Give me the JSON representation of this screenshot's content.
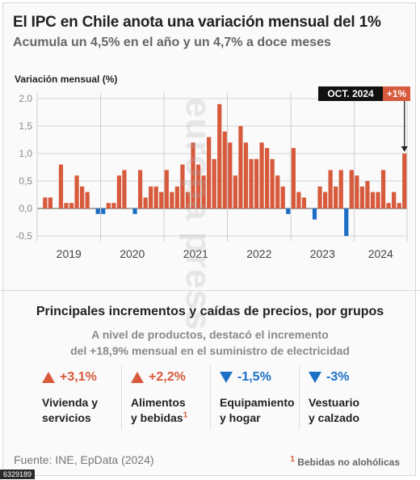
{
  "header": {
    "title": "El IPC en Chile anota una variación mensual del 1%",
    "subtitle": "Acumula un 4,5% en el año y un 4,7% a doce meses"
  },
  "watermark": "europa press",
  "chart_data": {
    "type": "bar",
    "title": "El IPC en Chile anota una variación mensual del 1%",
    "subtitle": "Acumula un 4,5% en el año y un 4,7% a doce meses",
    "ylabel": "Variación mensual (%)",
    "xlabel": "",
    "ylim": [
      -0.6,
      2.1
    ],
    "yticks": [
      "2,0",
      "1,5",
      "1,0",
      "0,5",
      "0,0",
      "-0,5"
    ],
    "ytick_values": [
      2.0,
      1.5,
      1.0,
      0.5,
      0.0,
      -0.5
    ],
    "grid": true,
    "year_labels": [
      "2019",
      "2020",
      "2021",
      "2022",
      "2023",
      "2024"
    ],
    "positive_color": "#d75a3c",
    "negative_color": "#1d6fc6",
    "annotation": {
      "label": "OCT. 2024",
      "value_label": "+1%"
    },
    "series": [
      {
        "values": [
          0.2,
          0.2,
          0.0,
          0.8,
          0.1,
          0.1,
          0.6,
          0.4,
          0.3,
          0.0,
          -0.1,
          -0.1,
          0.1,
          0.1,
          0.6,
          0.7,
          0.0,
          -0.1,
          0.7,
          0.2,
          0.4,
          0.4,
          0.3,
          0.7,
          0.3,
          0.4,
          0.8,
          0.3,
          1.2,
          0.8,
          0.6,
          1.3,
          0.9,
          1.9,
          1.4,
          1.2,
          0.6,
          1.5,
          1.2,
          0.9,
          0.9,
          1.2,
          1.1,
          0.9,
          0.6,
          0.4,
          -0.1,
          1.1,
          0.3,
          0.2,
          0.0,
          -0.2,
          0.4,
          0.3,
          0.7,
          0.4,
          0.7,
          -0.5,
          0.7,
          0.6,
          0.4,
          0.5,
          0.3,
          0.3,
          0.7,
          0.1,
          0.3,
          0.1,
          1.0
        ]
      }
    ]
  },
  "section": {
    "title": "Principales incrementos y caídas de precios, por grupos",
    "note_line1": "A nivel de productos, destacó el incremento",
    "note_line2": "del +18,9% mensual en el suministro de electricidad"
  },
  "categories": [
    {
      "value": "+3,1%",
      "label_l1": "Vivienda y",
      "label_l2": "servicios",
      "direction": "up",
      "icon": "triangle-up-icon"
    },
    {
      "value": "+2,2%",
      "label_l1": "Alimentos",
      "label_l2": "y bebidas",
      "sup": "1",
      "direction": "up",
      "icon": "triangle-up-icon"
    },
    {
      "value": "-1,5%",
      "label_l1": "Equipamiento",
      "label_l2": "y hogar",
      "direction": "down",
      "icon": "triangle-down-icon"
    },
    {
      "value": "-3%",
      "label_l1": "Vestuario",
      "label_l2": "y calzado",
      "direction": "down",
      "icon": "triangle-down-icon"
    }
  ],
  "footer": {
    "source": "Fuente: INE, EpData (2024)",
    "footnote_mark": "1",
    "footnote_text": "Bebidas no alohólicas",
    "image_id": "6329189"
  }
}
